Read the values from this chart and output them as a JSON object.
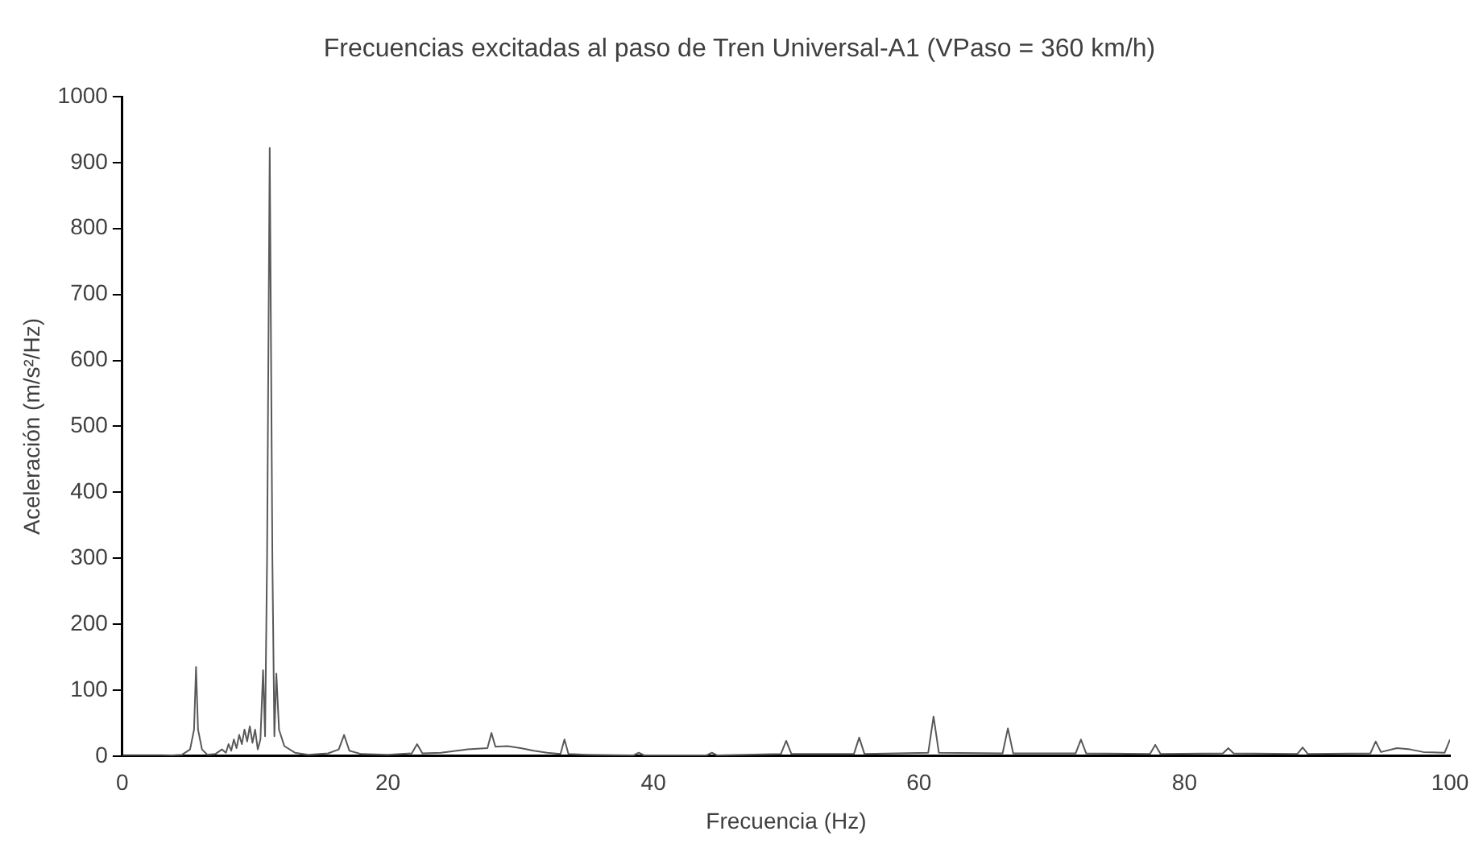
{
  "chart_data": {
    "type": "line",
    "title": "Frecuencias excitadas al paso de Tren Universal-A1 (VPaso = 360 km/h)",
    "xlabel": "Frecuencia (Hz)",
    "ylabel": "Aceleración (m/s²/Hz)",
    "xlim": [
      0,
      100
    ],
    "xticks": [
      0,
      20,
      40,
      60,
      80,
      100
    ],
    "ylim": [
      0,
      1000
    ],
    "yticks": [
      0,
      100,
      200,
      300,
      400,
      500,
      600,
      700,
      800,
      900,
      1000
    ],
    "grid": false,
    "legend": false,
    "marker": "none",
    "line_style": "solid",
    "series": [
      {
        "color": "#595959",
        "x": [
          0,
          3,
          4.5,
          5.1,
          5.4,
          5.55,
          5.7,
          6,
          6.4,
          7,
          7.5,
          7.8,
          8,
          8.2,
          8.4,
          8.6,
          8.8,
          9,
          9.2,
          9.4,
          9.6,
          9.8,
          10,
          10.2,
          10.4,
          10.6,
          10.75,
          10.9,
          11.1,
          11.3,
          11.45,
          11.6,
          11.8,
          12.2,
          13,
          14,
          15.5,
          16.3,
          16.7,
          17.1,
          18,
          20,
          21.8,
          22.2,
          22.6,
          24,
          26,
          27.5,
          27.8,
          28.1,
          29,
          30,
          31,
          32,
          33,
          33.3,
          33.6,
          35,
          38.5,
          38.9,
          39.3,
          44,
          44.4,
          44.8,
          49.6,
          50,
          50.4,
          55.1,
          55.5,
          55.9,
          60.7,
          61.1,
          61.5,
          66.3,
          66.7,
          67.1,
          71.8,
          72.2,
          72.6,
          77.4,
          77.8,
          78.2,
          82.9,
          83.3,
          83.7,
          88.5,
          88.9,
          89.3,
          94,
          94.4,
          94.8,
          96,
          97,
          98,
          99.6,
          100
        ],
        "values": [
          0,
          0,
          2,
          10,
          40,
          135,
          40,
          10,
          2,
          3,
          10,
          5,
          18,
          8,
          25,
          12,
          32,
          18,
          40,
          22,
          45,
          20,
          40,
          10,
          25,
          130,
          30,
          300,
          922,
          300,
          30,
          125,
          40,
          15,
          5,
          2,
          4,
          10,
          32,
          8,
          3,
          2,
          4,
          18,
          4,
          5,
          10,
          12,
          35,
          14,
          15,
          12,
          8,
          5,
          3,
          25,
          3,
          2,
          1,
          5,
          1,
          1,
          5,
          1,
          3,
          23,
          3,
          3,
          28,
          3,
          5,
          60,
          5,
          4,
          42,
          4,
          4,
          25,
          4,
          3,
          17,
          3,
          4,
          12,
          4,
          3,
          13,
          3,
          4,
          22,
          6,
          12,
          10,
          6,
          5,
          25
        ]
      }
    ]
  }
}
